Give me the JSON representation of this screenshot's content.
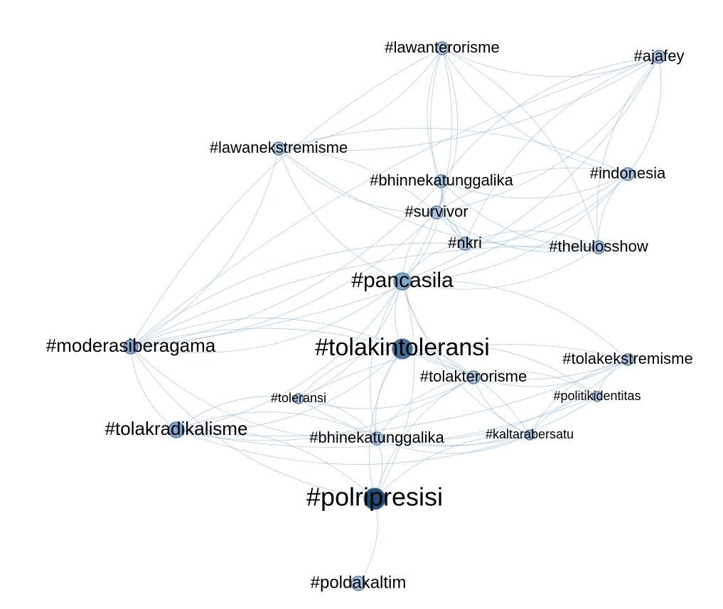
{
  "colors": {
    "edge": "#9cbbd8",
    "node_light": "#a9c3de",
    "node_mid": "#7fa6cc",
    "node_dark": "#3f6f98",
    "node_darkest": "#1f4f7a",
    "label": "#000000",
    "background": "#ffffff"
  },
  "nodes": [
    {
      "id": "lawanterorisme",
      "label": "#lawanterorisme",
      "degree": 2
    },
    {
      "id": "ajafey",
      "label": "#ajafey",
      "degree": 2
    },
    {
      "id": "lawanekstremisme",
      "label": "#lawanekstremisme",
      "degree": 2
    },
    {
      "id": "bhinnekatunggalika",
      "label": "#bhinnekatunggalika",
      "degree": 2
    },
    {
      "id": "indonesia",
      "label": "#indonesia",
      "degree": 2
    },
    {
      "id": "survivor",
      "label": "#survivor",
      "degree": 2
    },
    {
      "id": "nkri",
      "label": "#nkri",
      "degree": 2
    },
    {
      "id": "thelulosshow",
      "label": "#thelulosshow",
      "degree": 2
    },
    {
      "id": "pancasila",
      "label": "#pancasila",
      "degree": 4
    },
    {
      "id": "moderasiberagama",
      "label": "#moderasiberagama",
      "degree": 3
    },
    {
      "id": "tolakintoleransi",
      "label": "#tolakintoleransi",
      "degree": 5
    },
    {
      "id": "tolakekstremisme",
      "label": "#tolakekstremisme",
      "degree": 2
    },
    {
      "id": "tolakterorisme",
      "label": "#tolakterorisme",
      "degree": 2
    },
    {
      "id": "politikidentitas",
      "label": "#politikidentitas",
      "degree": 1
    },
    {
      "id": "toleransi",
      "label": "#toleransi",
      "degree": 1
    },
    {
      "id": "tolakradikalisme",
      "label": "#tolakradikalisme",
      "degree": 3
    },
    {
      "id": "bhinekatunggalika",
      "label": "#bhinekatunggalika",
      "degree": 2
    },
    {
      "id": "kaltarabersatu",
      "label": "#kaltarabersatu",
      "degree": 1
    },
    {
      "id": "polripresisi",
      "label": "#polripresisi",
      "degree": 6
    },
    {
      "id": "poldakaltim",
      "label": "#poldakaltim",
      "degree": 2
    }
  ],
  "edges": [
    [
      "lawanterorisme",
      "ajafey"
    ],
    [
      "lawanterorisme",
      "lawanekstremisme"
    ],
    [
      "lawanterorisme",
      "moderasiberagama"
    ],
    [
      "lawanterorisme",
      "pancasila"
    ],
    [
      "lawanterorisme",
      "indonesia"
    ],
    [
      "lawanterorisme",
      "thelulosshow"
    ],
    [
      "lawanterorisme",
      "bhinnekatunggalika"
    ],
    [
      "lawanterorisme",
      "survivor"
    ],
    [
      "lawanterorisme",
      "nkri"
    ],
    [
      "ajafey",
      "lawanekstremisme"
    ],
    [
      "ajafey",
      "moderasiberagama"
    ],
    [
      "ajafey",
      "pancasila"
    ],
    [
      "ajafey",
      "bhinnekatunggalika"
    ],
    [
      "ajafey",
      "survivor"
    ],
    [
      "ajafey",
      "nkri"
    ],
    [
      "ajafey",
      "indonesia"
    ],
    [
      "ajafey",
      "thelulosshow"
    ],
    [
      "lawanekstremisme",
      "moderasiberagama"
    ],
    [
      "lawanekstremisme",
      "pancasila"
    ],
    [
      "lawanekstremisme",
      "indonesia"
    ],
    [
      "lawanekstremisme",
      "survivor"
    ],
    [
      "lawanekstremisme",
      "nkri"
    ],
    [
      "lawanekstremisme",
      "thelulosshow"
    ],
    [
      "bhinnekatunggalika",
      "pancasila"
    ],
    [
      "bhinnekatunggalika",
      "indonesia"
    ],
    [
      "bhinnekatunggalika",
      "moderasiberagama"
    ],
    [
      "bhinnekatunggalika",
      "thelulosshow"
    ],
    [
      "bhinnekatunggalika",
      "survivor"
    ],
    [
      "bhinnekatunggalika",
      "nkri"
    ],
    [
      "indonesia",
      "pancasila"
    ],
    [
      "indonesia",
      "survivor"
    ],
    [
      "indonesia",
      "nkri"
    ],
    [
      "indonesia",
      "thelulosshow"
    ],
    [
      "indonesia",
      "moderasiberagama"
    ],
    [
      "survivor",
      "pancasila"
    ],
    [
      "survivor",
      "nkri"
    ],
    [
      "survivor",
      "thelulosshow"
    ],
    [
      "survivor",
      "moderasiberagama"
    ],
    [
      "nkri",
      "pancasila"
    ],
    [
      "nkri",
      "thelulosshow"
    ],
    [
      "nkri",
      "moderasiberagama"
    ],
    [
      "thelulosshow",
      "pancasila"
    ],
    [
      "thelulosshow",
      "moderasiberagama"
    ],
    [
      "pancasila",
      "moderasiberagama"
    ],
    [
      "pancasila",
      "tolakintoleransi"
    ],
    [
      "pancasila",
      "tolakradikalisme"
    ],
    [
      "pancasila",
      "tolakterorisme"
    ],
    [
      "pancasila",
      "tolakekstremisme"
    ],
    [
      "pancasila",
      "bhinekatunggalika"
    ],
    [
      "pancasila",
      "polripresisi"
    ],
    [
      "pancasila",
      "kaltarabersatu"
    ],
    [
      "pancasila",
      "toleransi"
    ],
    [
      "moderasiberagama",
      "tolakradikalisme"
    ],
    [
      "moderasiberagama",
      "tolakintoleransi"
    ],
    [
      "moderasiberagama",
      "bhinekatunggalika"
    ],
    [
      "moderasiberagama",
      "tolakterorisme"
    ],
    [
      "moderasiberagama",
      "polripresisi"
    ],
    [
      "tolakintoleransi",
      "tolakradikalisme"
    ],
    [
      "tolakintoleransi",
      "toleransi"
    ],
    [
      "tolakintoleransi",
      "tolakterorisme"
    ],
    [
      "tolakintoleransi",
      "tolakekstremisme"
    ],
    [
      "tolakintoleransi",
      "politikidentitas"
    ],
    [
      "tolakintoleransi",
      "bhinekatunggalika"
    ],
    [
      "tolakintoleransi",
      "kaltarabersatu"
    ],
    [
      "tolakintoleransi",
      "polripresisi"
    ],
    [
      "tolakekstremisme",
      "tolakterorisme"
    ],
    [
      "tolakekstremisme",
      "politikidentitas"
    ],
    [
      "tolakekstremisme",
      "bhinekatunggalika"
    ],
    [
      "tolakekstremisme",
      "kaltarabersatu"
    ],
    [
      "tolakekstremisme",
      "tolakradikalisme"
    ],
    [
      "tolakekstremisme",
      "toleransi"
    ],
    [
      "tolakterorisme",
      "politikidentitas"
    ],
    [
      "tolakterorisme",
      "bhinekatunggalika"
    ],
    [
      "tolakterorisme",
      "tolakradikalisme"
    ],
    [
      "tolakterorisme",
      "kaltarabersatu"
    ],
    [
      "tolakterorisme",
      "toleransi"
    ],
    [
      "tolakterorisme",
      "polripresisi"
    ],
    [
      "politikidentitas",
      "bhinekatunggalika"
    ],
    [
      "politikidentitas",
      "kaltarabersatu"
    ],
    [
      "politikidentitas",
      "tolakradikalisme"
    ],
    [
      "toleransi",
      "tolakradikalisme"
    ],
    [
      "toleransi",
      "bhinekatunggalika"
    ],
    [
      "toleransi",
      "kaltarabersatu"
    ],
    [
      "tolakradikalisme",
      "bhinekatunggalika"
    ],
    [
      "tolakradikalisme",
      "kaltarabersatu"
    ],
    [
      "tolakradikalisme",
      "polripresisi"
    ],
    [
      "bhinekatunggalika",
      "kaltarabersatu"
    ],
    [
      "bhinekatunggalika",
      "polripresisi"
    ],
    [
      "kaltarabersatu",
      "polripresisi"
    ],
    [
      "polripresisi",
      "poldakaltim"
    ]
  ]
}
